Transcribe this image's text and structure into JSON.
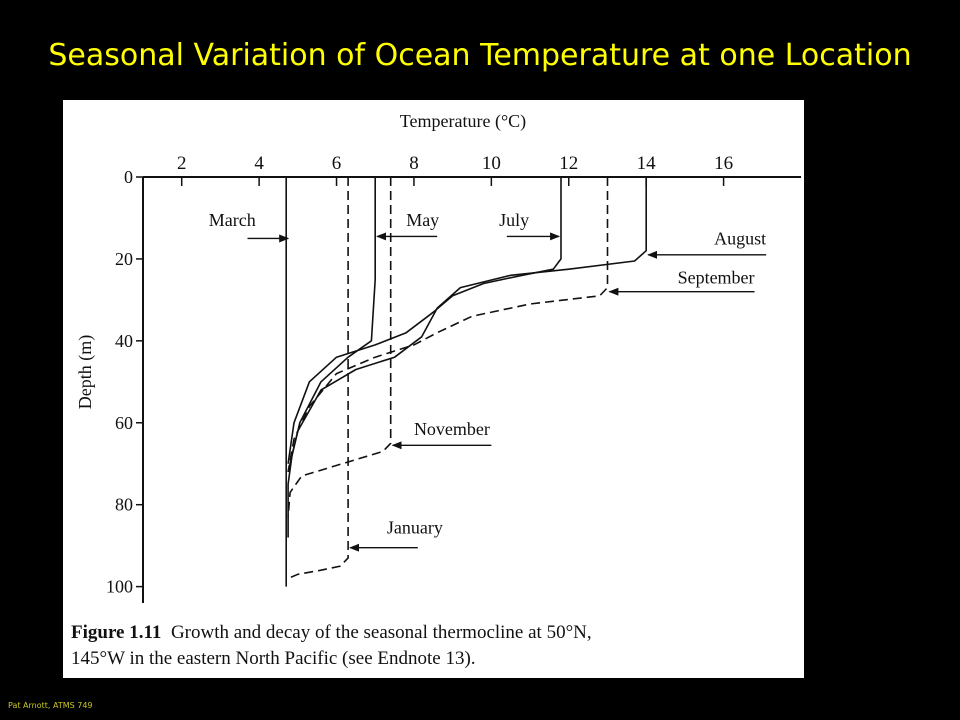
{
  "slide": {
    "title": "Seasonal Variation of Ocean Temperature at one Location",
    "footer": "Pat Arnott, ATMS 749",
    "title_color": "#ffff00",
    "background": "#000000"
  },
  "figure": {
    "caption_label": "Figure 1.11",
    "caption_line1": "Growth and decay of the seasonal thermocline at 50°N,",
    "caption_line2": "145°W in the eastern North Pacific (see Endnote 13)."
  },
  "chart_data": {
    "type": "line",
    "title": "",
    "xlabel": "Temperature (°C)",
    "ylabel": "Depth (m)",
    "x_axis_position": "top",
    "y_axis_inverted": true,
    "xlim": [
      1,
      18
    ],
    "ylim": [
      0,
      104
    ],
    "xticks": [
      "2",
      "4",
      "6",
      "8",
      "10",
      "12",
      "14",
      "16"
    ],
    "yticks": [
      "0",
      "20",
      "40",
      "60",
      "80",
      "100"
    ],
    "grid": false,
    "series": [
      {
        "name": "March",
        "style": "solid",
        "label_align": "left",
        "x": [
          4.7,
          4.7,
          4.7
        ],
        "y": [
          0,
          60,
          100
        ],
        "label_x": 2.7,
        "label_y": 12,
        "arrow_from": [
          3.7,
          15
        ],
        "arrow_to": [
          4.75,
          15
        ]
      },
      {
        "name": "May",
        "style": "solid",
        "label_align": "left",
        "x": [
          7.0,
          7.0,
          6.9,
          6.3,
          5.6,
          5.05,
          4.85,
          4.75,
          4.75
        ],
        "y": [
          0,
          25,
          40,
          44,
          50,
          60,
          68,
          75,
          88
        ],
        "label_x": 7.8,
        "label_y": 12,
        "arrow_from": [
          8.6,
          14.5
        ],
        "arrow_to": [
          7.05,
          14.5
        ]
      },
      {
        "name": "July",
        "style": "solid",
        "label_align": "left",
        "x": [
          11.8,
          11.8,
          11.6,
          10.8,
          9.8,
          9.0,
          8.5,
          7.8,
          7.0,
          6.0,
          5.3,
          4.9,
          4.75
        ],
        "y": [
          0,
          20,
          22.5,
          24,
          26,
          29,
          33,
          38,
          41,
          44,
          50,
          60,
          70
        ],
        "label_x": 10.2,
        "label_y": 12,
        "arrow_from": [
          10.4,
          14.5
        ],
        "arrow_to": [
          11.75,
          14.5
        ]
      },
      {
        "name": "August",
        "style": "solid",
        "label_align": "right",
        "x": [
          14.0,
          14.0,
          13.7,
          12.0,
          10.5,
          9.2,
          8.6,
          8.2,
          7.5,
          6.5,
          5.6,
          5.0,
          4.75
        ],
        "y": [
          0,
          18,
          20.5,
          22.5,
          24,
          27,
          32,
          39,
          44,
          47,
          52,
          62,
          72
        ],
        "label_x": 17.1,
        "label_y": 16.5,
        "arrow_from": [
          17.1,
          19
        ],
        "arrow_to": [
          14.05,
          19
        ]
      },
      {
        "name": "September",
        "style": "dashed",
        "label_align": "right",
        "x": [
          13.0,
          13.0,
          12.8,
          11.0,
          9.5,
          8.6,
          8.0,
          7.0,
          6.0,
          5.3,
          4.9,
          4.75
        ],
        "y": [
          0,
          27,
          29,
          31,
          34,
          38,
          41,
          44,
          48,
          56,
          64,
          72
        ],
        "label_x": 16.8,
        "label_y": 26,
        "arrow_from": [
          16.8,
          28
        ],
        "arrow_to": [
          13.05,
          28
        ]
      },
      {
        "name": "November",
        "style": "dashed",
        "label_align": "left",
        "x": [
          7.4,
          7.4,
          7.2,
          6.5,
          5.8,
          5.1,
          4.8,
          4.75
        ],
        "y": [
          0,
          65,
          67,
          69,
          71,
          73,
          77,
          83
        ],
        "label_x": 8.0,
        "label_y": 63,
        "arrow_from": [
          10.0,
          65.5
        ],
        "arrow_to": [
          7.45,
          65.5
        ]
      },
      {
        "name": "January",
        "style": "dashed",
        "label_align": "left",
        "x": [
          6.3,
          6.3,
          6.1,
          5.6,
          5.0,
          4.75
        ],
        "y": [
          0,
          93,
          95,
          96,
          97,
          98
        ],
        "label_x": 7.3,
        "label_y": 87,
        "arrow_from": [
          8.1,
          90.5
        ],
        "arrow_to": [
          6.35,
          90.5
        ]
      }
    ]
  }
}
